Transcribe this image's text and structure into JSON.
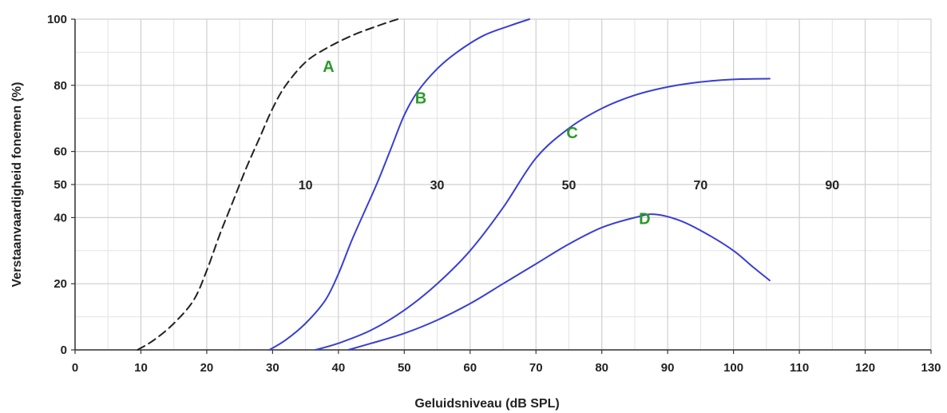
{
  "chart_data": {
    "type": "line",
    "title": "",
    "xlabel": "Geluidsniveau (dB SPL)",
    "ylabel": "Verstaanvaardigheid fonemen (%)",
    "xlim": [
      0,
      130
    ],
    "ylim": [
      0,
      100
    ],
    "x_ticks": [
      0,
      10,
      20,
      30,
      40,
      50,
      60,
      70,
      80,
      90,
      100,
      110,
      120,
      130
    ],
    "y_ticks": [
      0,
      20,
      40,
      50,
      60,
      80,
      100
    ],
    "x_grid_minor": [
      5,
      15,
      25,
      35,
      45,
      55,
      65,
      75,
      85,
      95,
      105,
      115,
      125
    ],
    "y_grid_minor": [
      10,
      30,
      70,
      90
    ],
    "grid": true,
    "line_color": "#3a3fd1",
    "dashed_color": "#222222",
    "label_color": "#2a9a2a",
    "series": [
      {
        "name": "A",
        "style": "dashed",
        "points": [
          [
            9.5,
            0
          ],
          [
            12,
            3
          ],
          [
            15,
            8
          ],
          [
            18,
            15
          ],
          [
            20,
            24
          ],
          [
            22,
            35
          ],
          [
            24,
            45
          ],
          [
            26,
            55
          ],
          [
            28,
            64
          ],
          [
            30,
            73
          ],
          [
            32,
            80
          ],
          [
            35,
            87
          ],
          [
            38,
            91
          ],
          [
            42,
            95
          ],
          [
            46,
            98
          ],
          [
            49,
            100
          ]
        ],
        "label_at": [
          38.5,
          84
        ]
      },
      {
        "name": "B",
        "style": "solid",
        "points": [
          [
            29.5,
            0
          ],
          [
            32,
            3
          ],
          [
            35,
            8
          ],
          [
            38,
            15
          ],
          [
            40,
            23
          ],
          [
            42,
            33
          ],
          [
            44,
            42
          ],
          [
            46,
            51
          ],
          [
            48,
            61
          ],
          [
            50,
            71
          ],
          [
            52,
            78
          ],
          [
            55,
            85
          ],
          [
            58,
            90
          ],
          [
            62,
            95
          ],
          [
            66,
            98
          ],
          [
            69,
            100
          ]
        ],
        "label_at": [
          52.5,
          74.5
        ]
      },
      {
        "name": "C",
        "style": "solid",
        "points": [
          [
            36.5,
            0
          ],
          [
            40,
            2
          ],
          [
            45,
            6
          ],
          [
            50,
            12
          ],
          [
            55,
            20
          ],
          [
            60,
            30
          ],
          [
            65,
            43
          ],
          [
            70,
            58
          ],
          [
            75,
            67
          ],
          [
            80,
            73
          ],
          [
            85,
            77
          ],
          [
            90,
            79.5
          ],
          [
            95,
            81
          ],
          [
            100,
            81.8
          ],
          [
            105.5,
            82
          ]
        ],
        "label_at": [
          75.5,
          64
        ]
      },
      {
        "name": "D",
        "style": "solid",
        "points": [
          [
            41.5,
            0
          ],
          [
            45,
            2
          ],
          [
            50,
            5
          ],
          [
            55,
            9
          ],
          [
            60,
            14
          ],
          [
            65,
            20
          ],
          [
            70,
            26
          ],
          [
            75,
            32
          ],
          [
            80,
            37
          ],
          [
            85,
            40
          ],
          [
            88,
            41
          ],
          [
            92,
            39
          ],
          [
            96,
            35
          ],
          [
            100,
            30
          ],
          [
            103,
            25
          ],
          [
            105.5,
            21
          ]
        ],
        "label_at": [
          86.5,
          38
        ]
      }
    ],
    "annotations": [
      {
        "text": "10",
        "x": 35,
        "y": 50
      },
      {
        "text": "30",
        "x": 55,
        "y": 50
      },
      {
        "text": "50",
        "x": 75,
        "y": 50
      },
      {
        "text": "70",
        "x": 95,
        "y": 50
      },
      {
        "text": "90",
        "x": 115,
        "y": 50
      }
    ]
  }
}
